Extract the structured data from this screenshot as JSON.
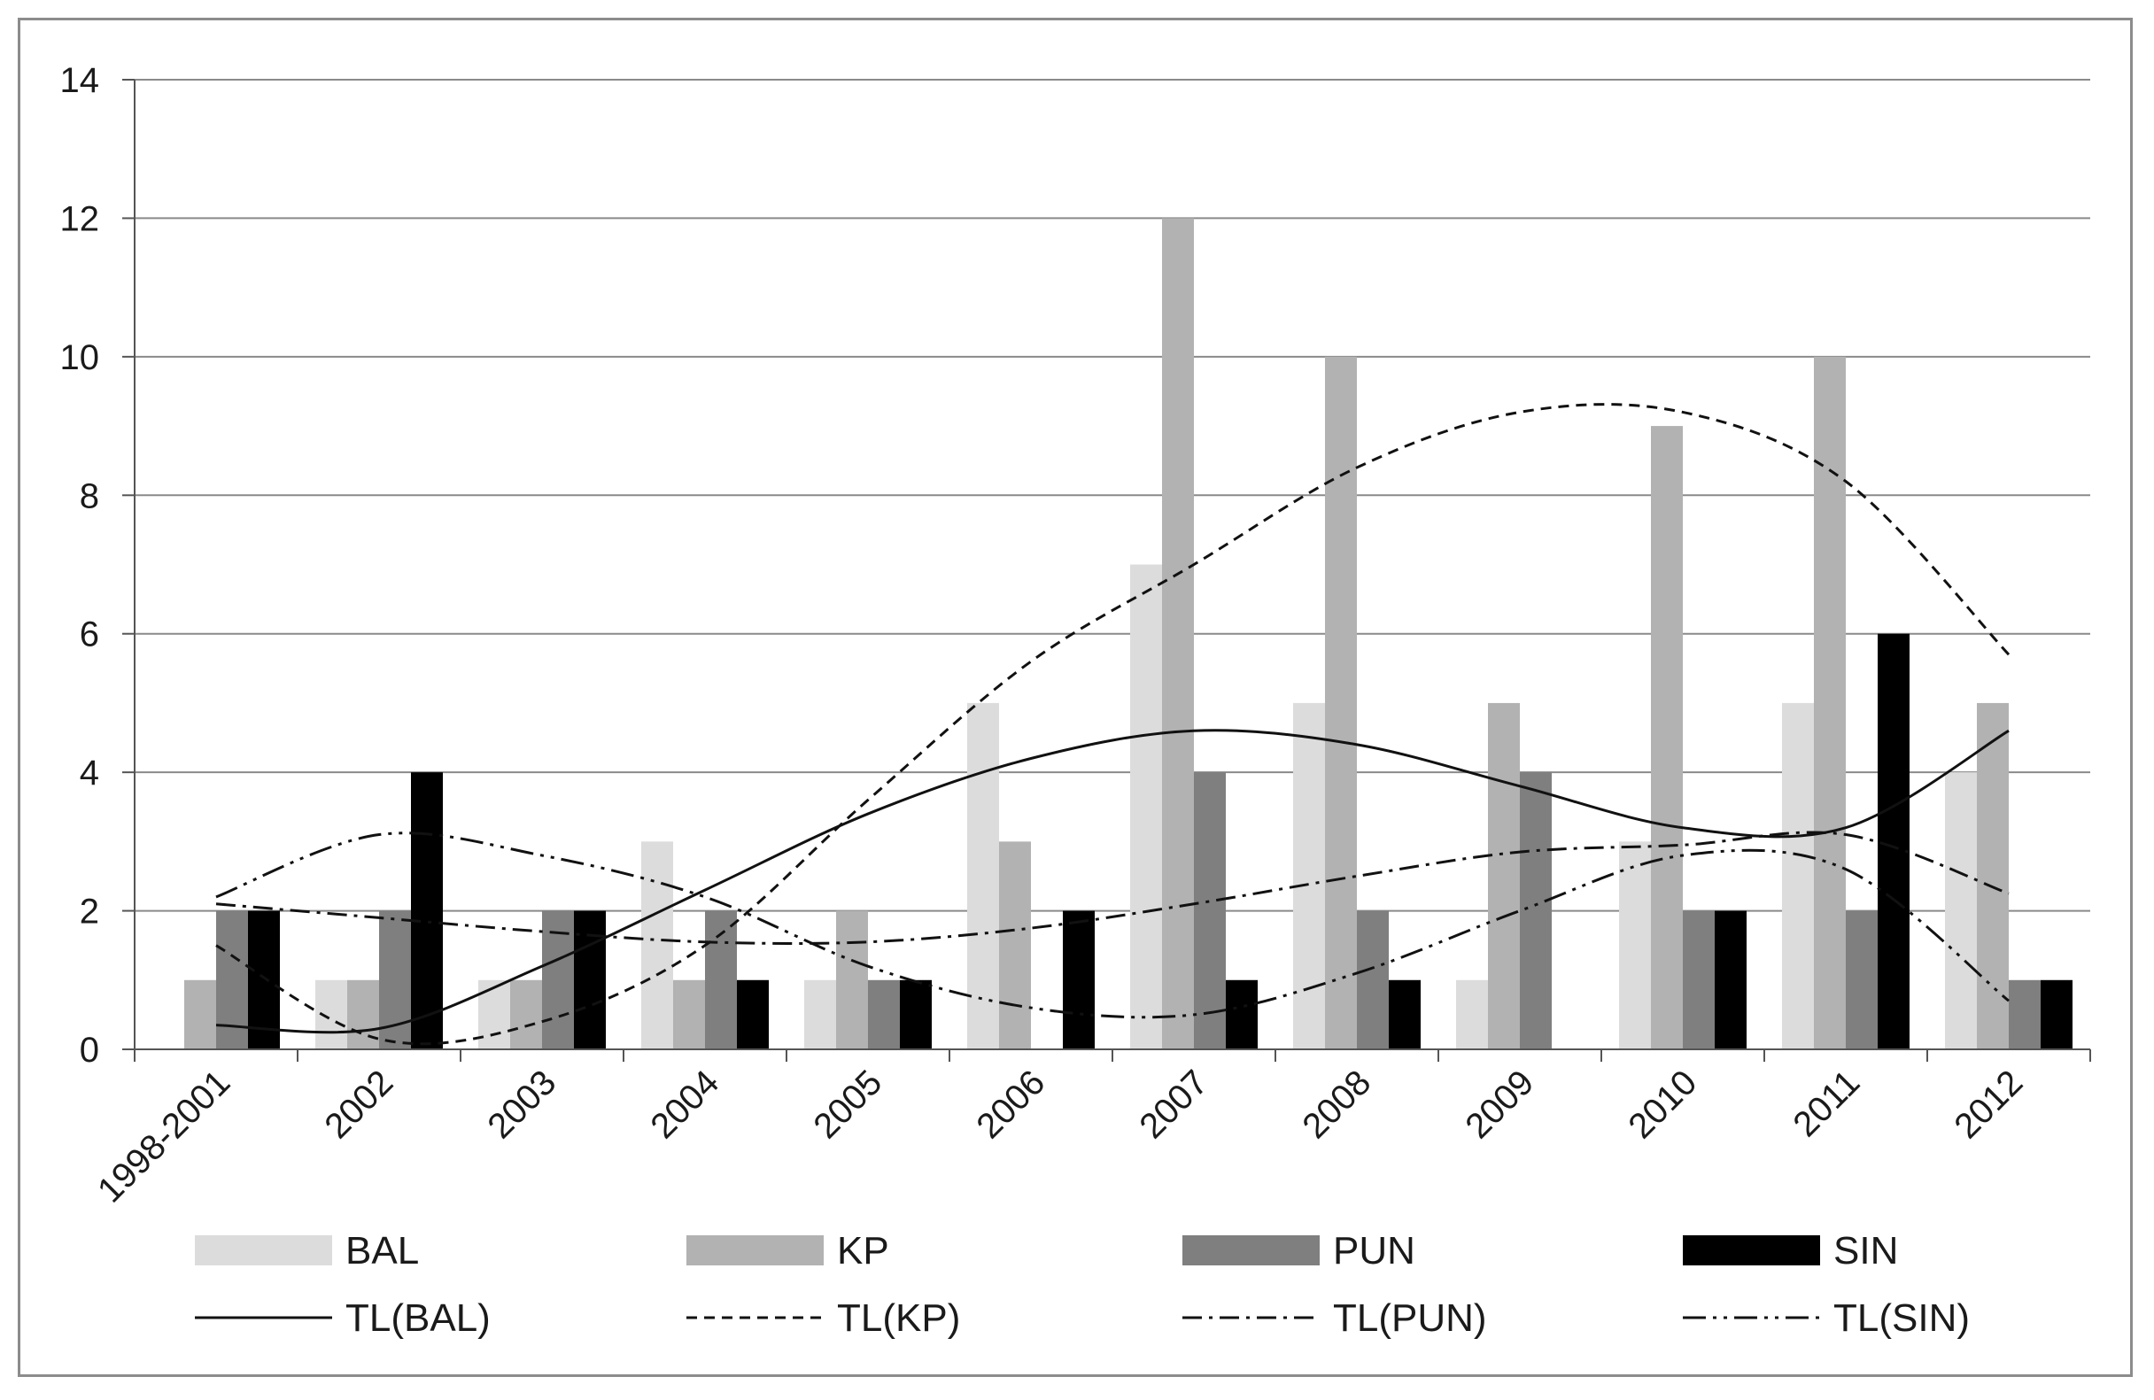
{
  "chart_data": {
    "type": "bar",
    "title": "",
    "xlabel": "",
    "ylabel": "",
    "ylim": [
      0,
      14
    ],
    "yticks": [
      0,
      2,
      4,
      6,
      8,
      10,
      12,
      14
    ],
    "grid": true,
    "legend_position": "bottom",
    "categories": [
      "1998-2001",
      "2002",
      "2003",
      "2004",
      "2005",
      "2006",
      "2007",
      "2008",
      "2009",
      "2010",
      "2011",
      "2012"
    ],
    "series": [
      {
        "name": "BAL",
        "color": "#dcdcdc",
        "values": [
          0,
          1,
          1,
          3,
          1,
          5,
          7,
          5,
          1,
          3,
          5,
          4
        ]
      },
      {
        "name": "KP",
        "color": "#b2b2b2",
        "values": [
          1,
          1,
          1,
          1,
          2,
          3,
          12,
          10,
          5,
          9,
          10,
          5
        ]
      },
      {
        "name": "PUN",
        "color": "#7f7f7f",
        "values": [
          2,
          2,
          2,
          2,
          1,
          0,
          4,
          2,
          4,
          2,
          2,
          1
        ]
      },
      {
        "name": "SIN",
        "color": "#000000",
        "values": [
          2,
          4,
          2,
          1,
          1,
          2,
          1,
          1,
          0,
          2,
          6,
          1
        ]
      }
    ],
    "trendlines": [
      {
        "name": "TL(BAL)",
        "style": "solid",
        "values": [
          0.35,
          0.3,
          1.2,
          2.3,
          3.4,
          4.2,
          4.6,
          4.4,
          3.8,
          3.2,
          3.2,
          4.6
        ]
      },
      {
        "name": "TL(KP)",
        "style": "dash",
        "values": [
          1.5,
          0.15,
          0.4,
          1.5,
          3.6,
          5.6,
          7.0,
          8.4,
          9.2,
          9.2,
          8.2,
          5.7
        ]
      },
      {
        "name": "TL(PUN)",
        "style": "dash-dot",
        "values": [
          2.1,
          1.9,
          1.7,
          1.55,
          1.55,
          1.75,
          2.1,
          2.5,
          2.85,
          2.95,
          3.1,
          2.25
        ]
      },
      {
        "name": "TL(SIN)",
        "style": "dash-dot-dot",
        "values": [
          2.2,
          3.1,
          2.8,
          2.2,
          1.2,
          0.6,
          0.5,
          1.1,
          2.0,
          2.8,
          2.6,
          0.7
        ]
      }
    ]
  }
}
